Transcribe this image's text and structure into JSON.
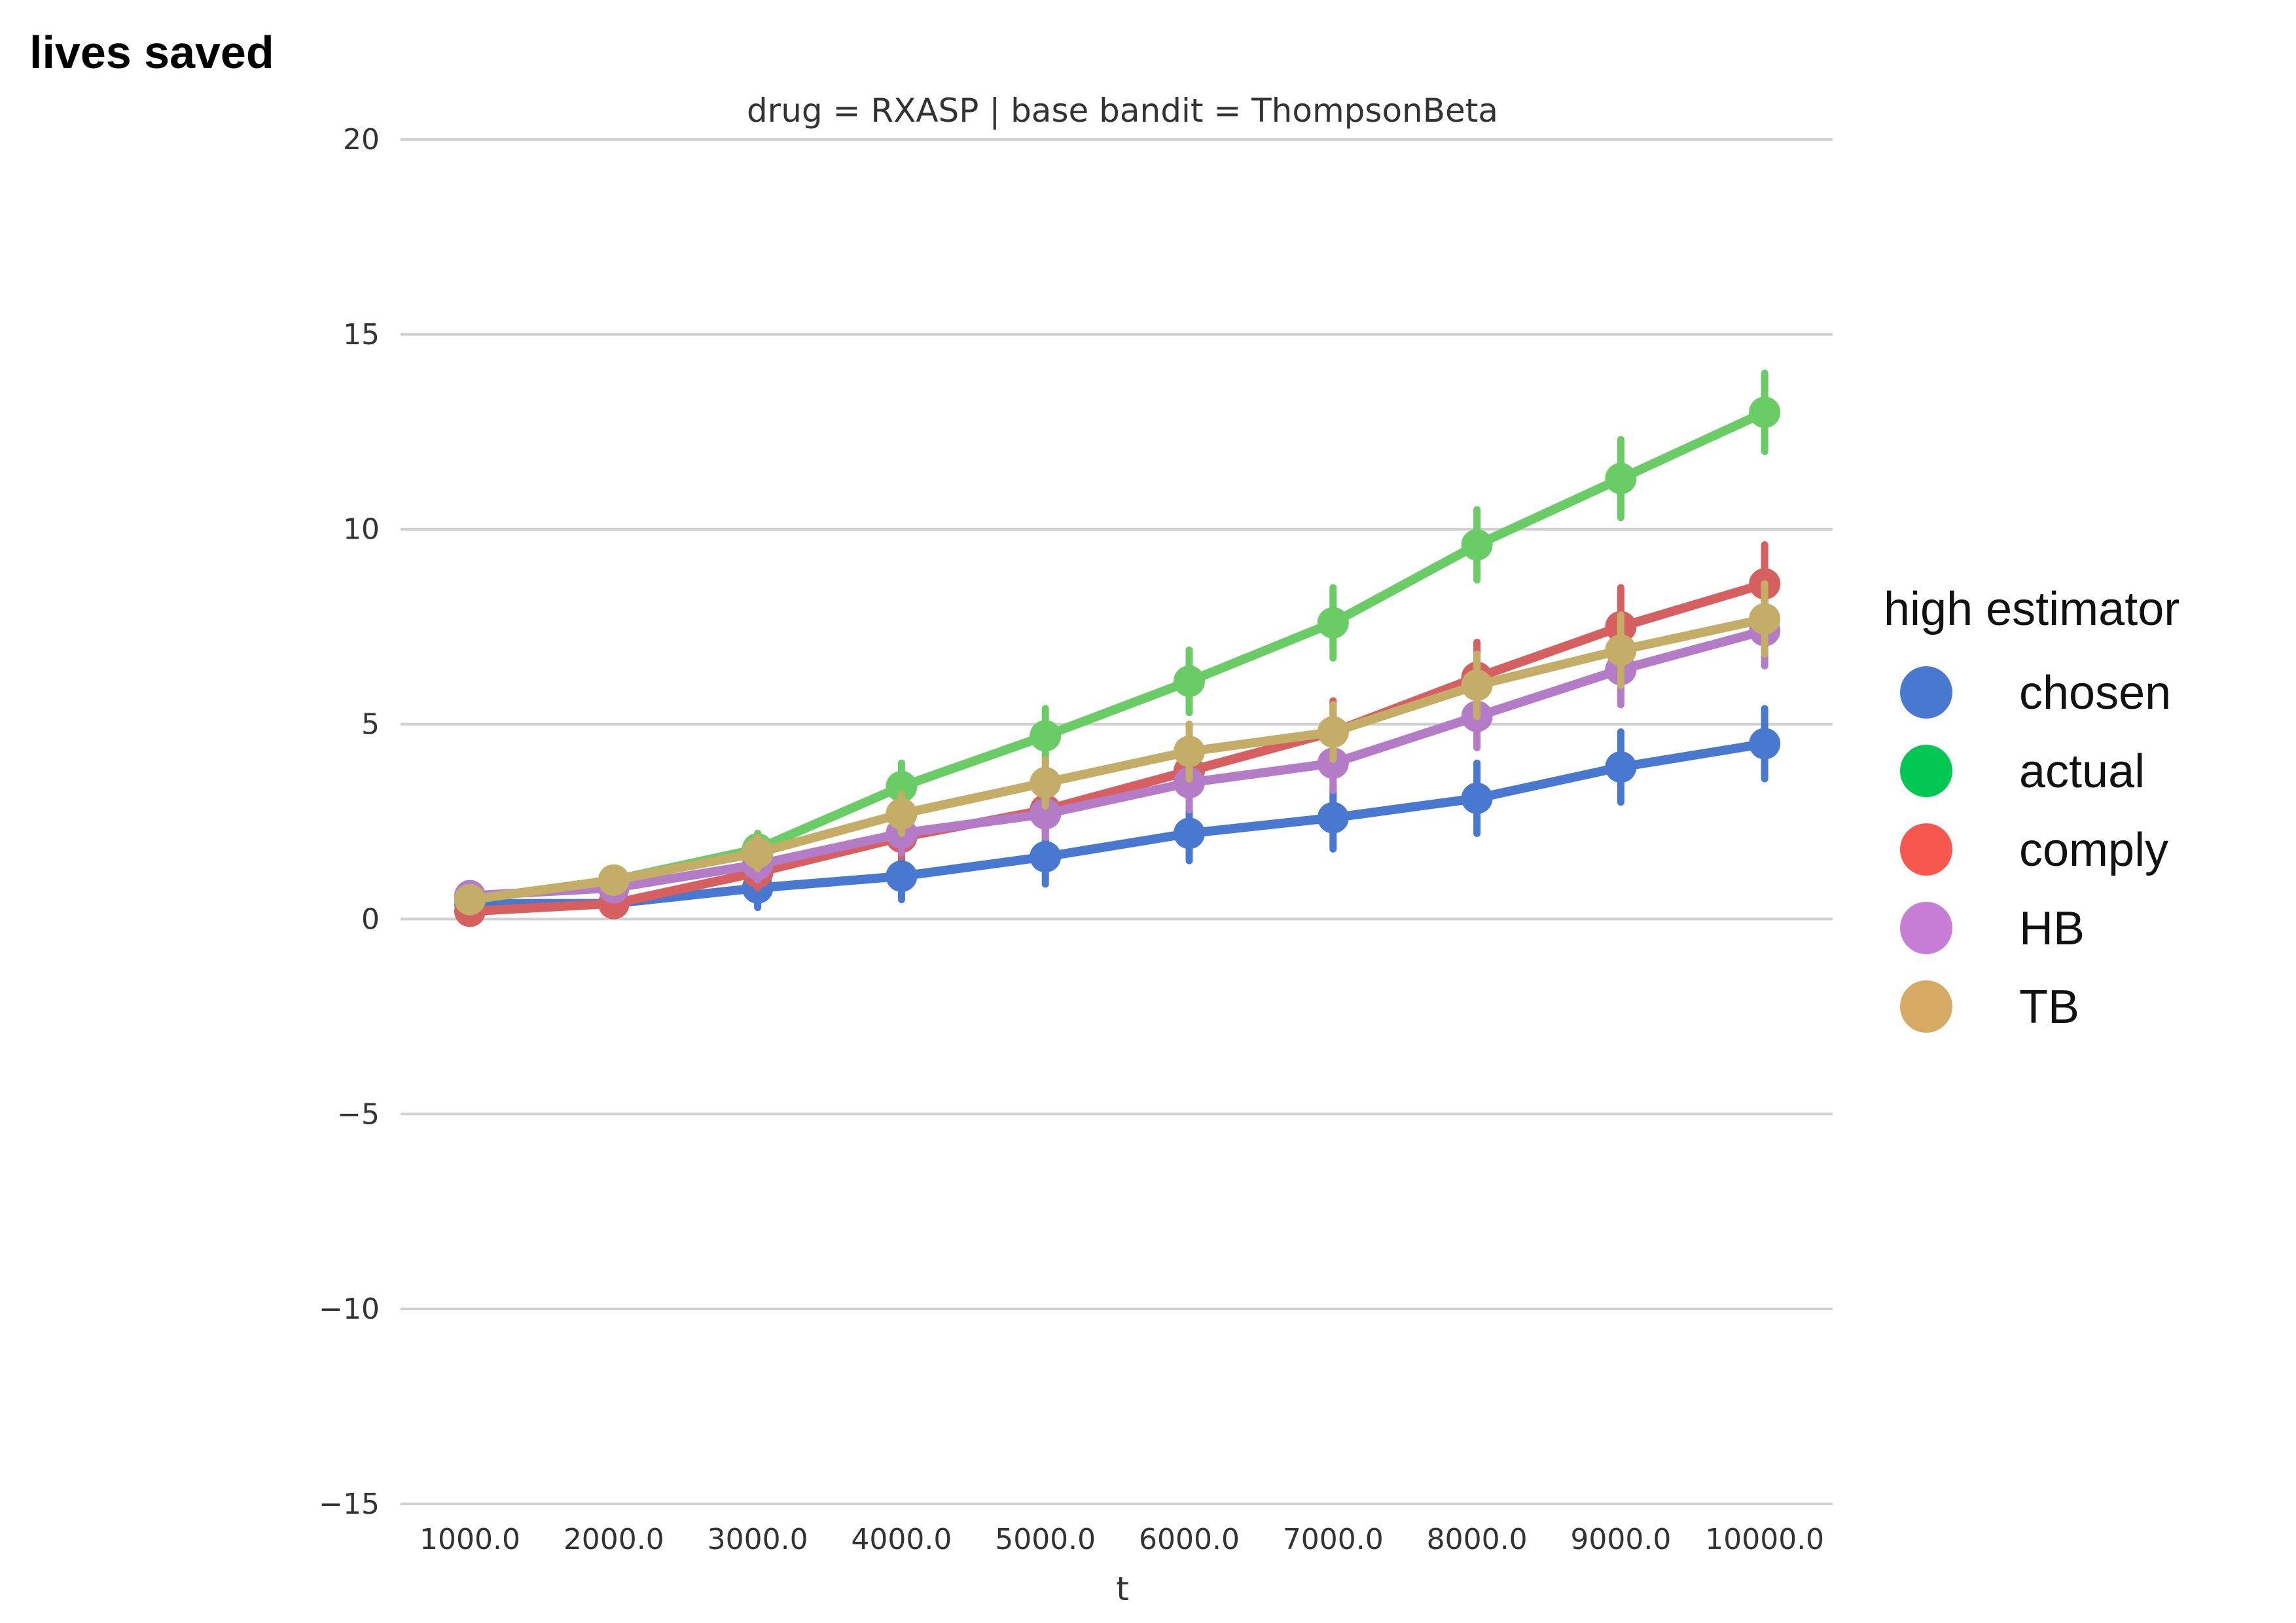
{
  "chart_data": {
    "type": "line",
    "ylabel": "lives saved",
    "subtitle": "drug = RXASP | base bandit = ThompsonBeta",
    "xlabel": "t",
    "x": [
      "1000.0",
      "2000.0",
      "3000.0",
      "4000.0",
      "5000.0",
      "6000.0",
      "7000.0",
      "8000.0",
      "9000.0",
      "10000.0"
    ],
    "ylim": [
      -15,
      20
    ],
    "yticks": [
      -15,
      -10,
      -5,
      0,
      5,
      10,
      15,
      20
    ],
    "ytick_labels": [
      "−15",
      "−10",
      "−5",
      "0",
      "5",
      "10",
      "15",
      "20"
    ],
    "grid": true,
    "legend_title": "high estimator",
    "legend_position": "right",
    "series": [
      {
        "name": "chosen",
        "color": "#4878cf",
        "legend_color": "#4878cf",
        "values": [
          0.4,
          0.4,
          0.8,
          1.1,
          1.6,
          2.2,
          2.6,
          3.1,
          3.9,
          4.5
        ],
        "err": [
          0.2,
          0.3,
          0.5,
          0.6,
          0.7,
          0.7,
          0.8,
          0.9,
          0.9,
          0.9
        ]
      },
      {
        "name": "actual",
        "color": "#6acc65",
        "legend_color": "#00c853",
        "values": [
          0.5,
          1.0,
          1.8,
          3.4,
          4.7,
          6.1,
          7.6,
          9.6,
          11.3,
          13.0
        ],
        "err": [
          0.2,
          0.3,
          0.4,
          0.6,
          0.7,
          0.8,
          0.9,
          0.9,
          1.0,
          1.0
        ]
      },
      {
        "name": "comply",
        "color": "#d65f5f",
        "legend_color": "#f8574e",
        "values": [
          0.2,
          0.4,
          1.2,
          2.1,
          2.8,
          3.8,
          4.8,
          6.2,
          7.5,
          8.6
        ],
        "err": [
          0.2,
          0.3,
          0.4,
          0.5,
          0.6,
          0.7,
          0.8,
          0.9,
          1.0,
          1.0
        ]
      },
      {
        "name": "HB",
        "color": "#b47cc7",
        "legend_color": "#c77cd6",
        "values": [
          0.6,
          0.8,
          1.4,
          2.2,
          2.7,
          3.5,
          4.0,
          5.2,
          6.4,
          7.4
        ],
        "err": [
          0.2,
          0.3,
          0.4,
          0.5,
          0.6,
          0.7,
          0.7,
          0.8,
          0.9,
          0.9
        ]
      },
      {
        "name": "TB",
        "color": "#c4ad66",
        "legend_color": "#d4aa64",
        "values": [
          0.5,
          1.0,
          1.7,
          2.7,
          3.5,
          4.3,
          4.8,
          6.0,
          6.9,
          7.7
        ],
        "err": [
          0.2,
          0.3,
          0.4,
          0.5,
          0.6,
          0.7,
          0.7,
          0.8,
          0.9,
          0.9
        ]
      }
    ]
  }
}
